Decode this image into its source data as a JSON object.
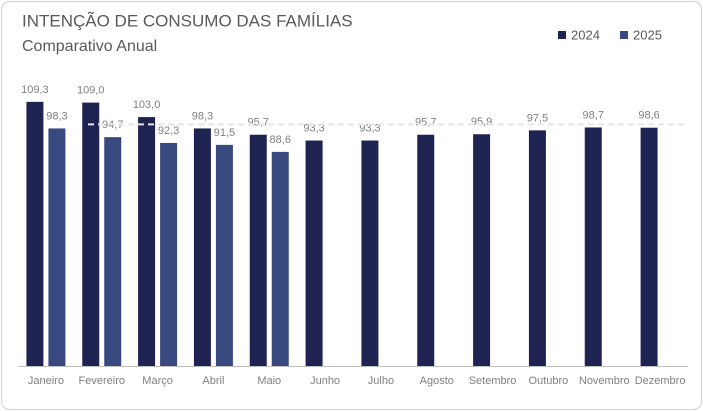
{
  "chart_data": {
    "type": "bar",
    "title": "INTENÇÃO DE CONSUMO DAS FAMÍLIAS",
    "subtitle": "Comparativo Anual",
    "categories": [
      "Janeiro",
      "Fevereiro",
      "Março",
      "Abril",
      "Maio",
      "Junho",
      "Julho",
      "Agosto",
      "Setembro",
      "Outubro",
      "Novembro",
      "Dezembro"
    ],
    "series": [
      {
        "name": "2024",
        "color": "#1f2352",
        "values": [
          109.3,
          109.0,
          103.0,
          98.3,
          95.7,
          93.3,
          93.3,
          95.7,
          95.9,
          97.5,
          98.7,
          98.6
        ],
        "value_labels": [
          "109,3",
          "109,0",
          "103,0",
          "98,3",
          "95,7",
          "93,3",
          "93,3",
          "95,7",
          "95,9",
          "97,5",
          "98,7",
          "98,6"
        ]
      },
      {
        "name": "2025",
        "color": "#37497f",
        "values": [
          98.3,
          94.7,
          92.3,
          91.5,
          88.6,
          null,
          null,
          null,
          null,
          null,
          null,
          null
        ],
        "value_labels": [
          "98,3",
          "94,7",
          "92,3",
          "91,5",
          "88,6",
          null,
          null,
          null,
          null,
          null,
          null,
          null
        ]
      }
    ],
    "reference_line": 100,
    "ylim": [
      0,
      120
    ],
    "legend": "top-right"
  }
}
